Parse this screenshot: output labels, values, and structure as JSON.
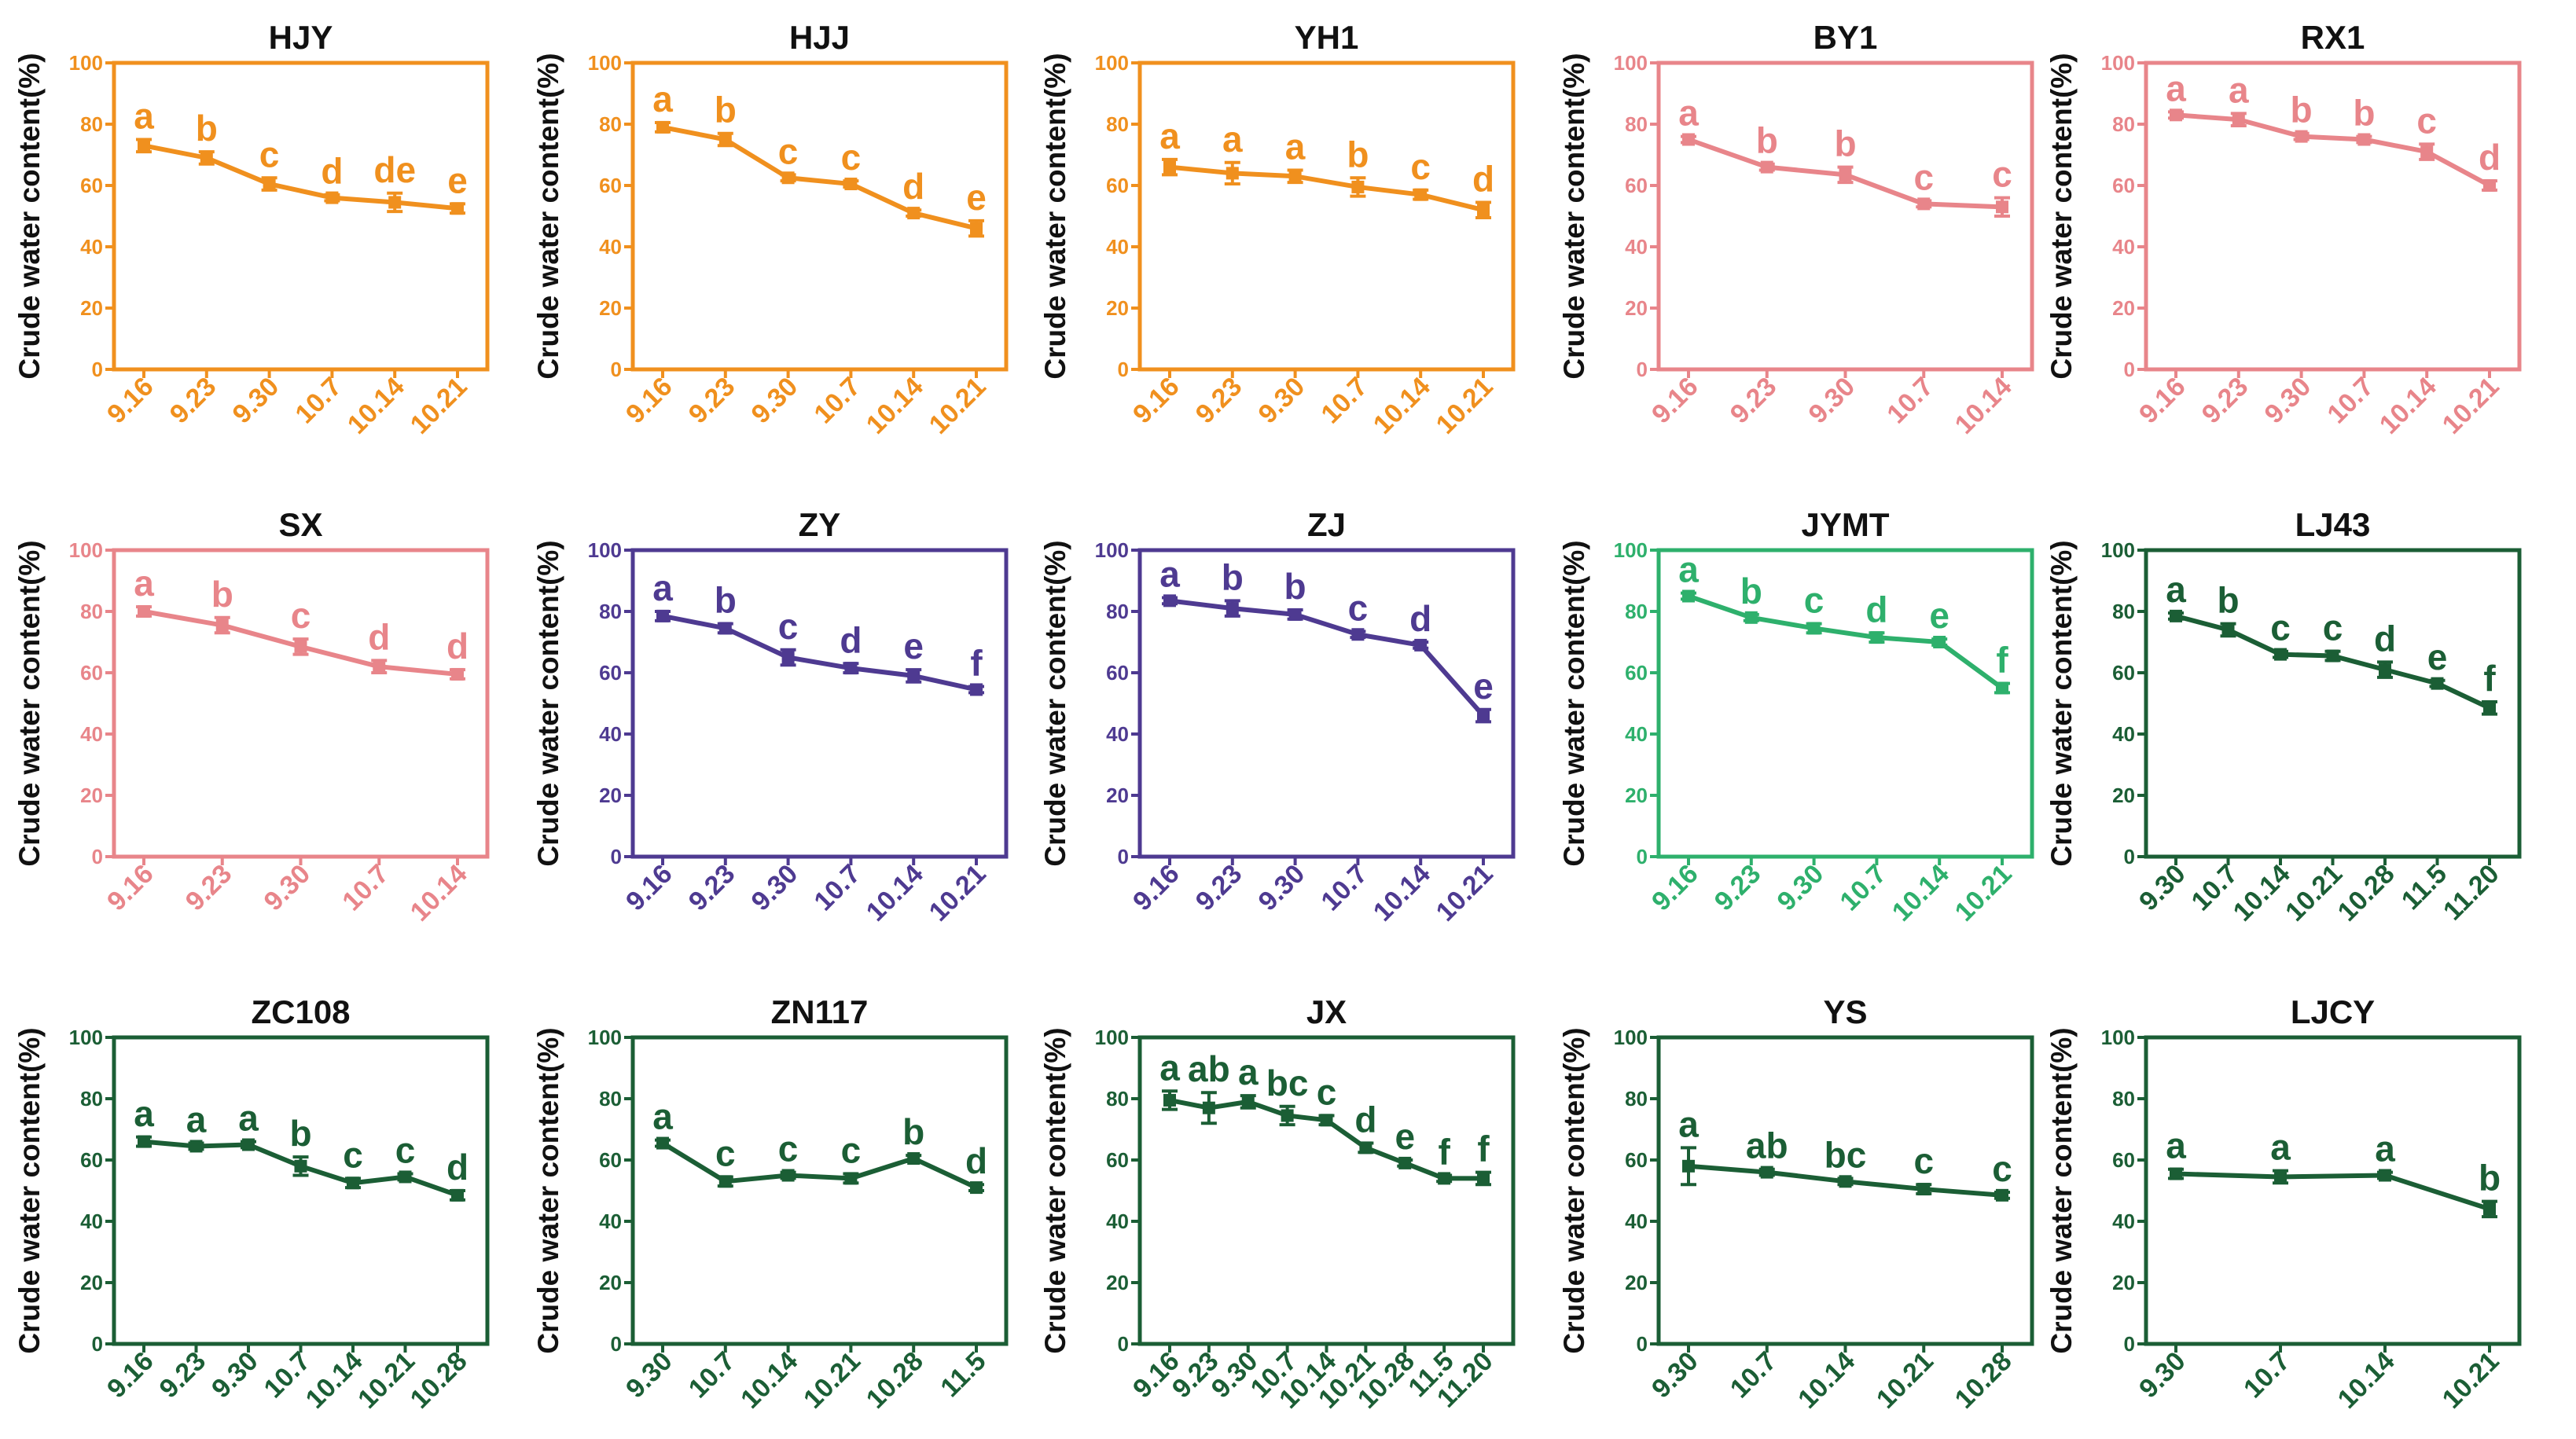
{
  "figure": {
    "ylabel": "Crude water content(%)",
    "ylim": [
      0,
      100
    ],
    "yticks": [
      0,
      20,
      40,
      60,
      80,
      100
    ]
  },
  "chart_data": [
    {
      "type": "line",
      "title": "HJY",
      "color": "#F0901E",
      "ylabel": "Crude water content(%)",
      "ylim": [
        0,
        100
      ],
      "categories": [
        "9.16",
        "9.23",
        "9.30",
        "10.7",
        "10.14",
        "10.21"
      ],
      "values": [
        73,
        69,
        60.5,
        56,
        54.5,
        52.5
      ],
      "errors": [
        2,
        2,
        2,
        1,
        3,
        1.5
      ],
      "letters": [
        "a",
        "b",
        "c",
        "d",
        "de",
        "e"
      ]
    },
    {
      "type": "line",
      "title": "HJJ",
      "color": "#F0901E",
      "ylabel": "Crude water content(%)",
      "ylim": [
        0,
        100
      ],
      "categories": [
        "9.16",
        "9.23",
        "9.30",
        "10.7",
        "10.14",
        "10.21"
      ],
      "values": [
        79,
        75,
        62.5,
        60.5,
        51,
        46
      ],
      "errors": [
        1.5,
        2,
        1,
        1,
        1,
        2.5
      ],
      "letters": [
        "a",
        "b",
        "c",
        "c",
        "d",
        "e"
      ]
    },
    {
      "type": "line",
      "title": "YH1",
      "color": "#F0901E",
      "ylabel": "Crude water content(%)",
      "ylim": [
        0,
        100
      ],
      "categories": [
        "9.16",
        "9.23",
        "9.30",
        "10.7",
        "10.14",
        "10.21"
      ],
      "values": [
        66,
        64,
        63,
        59.5,
        57,
        52
      ],
      "errors": [
        2.5,
        3.5,
        2,
        3,
        1.5,
        2.5
      ],
      "letters": [
        "a",
        "a",
        "a",
        "b",
        "c",
        "d"
      ]
    },
    {
      "type": "line",
      "title": "BY1",
      "color": "#E8858A",
      "ylabel": "Crude water content(%)",
      "ylim": [
        0,
        100
      ],
      "categories": [
        "9.16",
        "9.23",
        "9.30",
        "10.7",
        "10.14"
      ],
      "values": [
        75,
        66,
        63.5,
        54,
        53
      ],
      "errors": [
        1,
        1,
        2.5,
        1,
        3
      ],
      "letters": [
        "a",
        "b",
        "b",
        "c",
        "c"
      ]
    },
    {
      "type": "line",
      "title": "RX1",
      "color": "#E8858A",
      "ylabel": "Crude water content(%)",
      "ylim": [
        0,
        100
      ],
      "categories": [
        "9.16",
        "9.23",
        "9.30",
        "10.7",
        "10.14",
        "10.21"
      ],
      "values": [
        83,
        81.5,
        76,
        75,
        71,
        60
      ],
      "errors": [
        1,
        2,
        1,
        1,
        2.5,
        1.5
      ],
      "letters": [
        "a",
        "a",
        "b",
        "b",
        "c",
        "d"
      ]
    },
    {
      "type": "line",
      "title": "SX",
      "color": "#E8858A",
      "ylabel": "Crude water content(%)",
      "ylim": [
        0,
        100
      ],
      "categories": [
        "9.16",
        "9.23",
        "9.30",
        "10.7",
        "10.14"
      ],
      "values": [
        80,
        75.5,
        68.5,
        62,
        59.5
      ],
      "errors": [
        1.5,
        2.5,
        2.5,
        2,
        1.5
      ],
      "letters": [
        "a",
        "b",
        "c",
        "d",
        "d"
      ]
    },
    {
      "type": "line",
      "title": "ZY",
      "color": "#4E3A91",
      "ylabel": "Crude water content(%)",
      "ylim": [
        0,
        100
      ],
      "categories": [
        "9.16",
        "9.23",
        "9.30",
        "10.7",
        "10.14",
        "10.21"
      ],
      "values": [
        78.5,
        74.5,
        65,
        61.5,
        59,
        54.5
      ],
      "errors": [
        1.5,
        1.5,
        2.5,
        1.5,
        2,
        1
      ],
      "letters": [
        "a",
        "b",
        "c",
        "d",
        "e",
        "f"
      ]
    },
    {
      "type": "line",
      "title": "ZJ",
      "color": "#4E3A91",
      "ylabel": "Crude water content(%)",
      "ylim": [
        0,
        100
      ],
      "categories": [
        "9.16",
        "9.23",
        "9.30",
        "10.7",
        "10.14",
        "10.21"
      ],
      "values": [
        83.5,
        81,
        79,
        72.5,
        69,
        46
      ],
      "errors": [
        1,
        2.5,
        1.5,
        1,
        1,
        2
      ],
      "letters": [
        "a",
        "b",
        "b",
        "c",
        "d",
        "e"
      ]
    },
    {
      "type": "line",
      "title": "JYMT",
      "color": "#2EB06C",
      "ylabel": "Crude water content(%)",
      "ylim": [
        0,
        100
      ],
      "categories": [
        "9.16",
        "9.23",
        "9.30",
        "10.7",
        "10.14",
        "10.21"
      ],
      "values": [
        85,
        78,
        74.5,
        71.5,
        70,
        55
      ],
      "errors": [
        1,
        1,
        1.5,
        1.5,
        1,
        1.5
      ],
      "letters": [
        "a",
        "b",
        "c",
        "d",
        "e",
        "f"
      ]
    },
    {
      "type": "line",
      "title": "LJ43",
      "color": "#1B5E35",
      "ylabel": "Crude water content(%)",
      "ylim": [
        0,
        100
      ],
      "categories": [
        "9.30",
        "10.7",
        "10.14",
        "10.21",
        "10.28",
        "11.5",
        "11.20"
      ],
      "values": [
        78.5,
        74,
        66,
        65.5,
        61,
        56.5,
        48.5
      ],
      "errors": [
        1,
        2,
        1,
        1.5,
        2.5,
        1,
        2
      ],
      "letters": [
        "a",
        "b",
        "c",
        "c",
        "d",
        "e",
        "f"
      ]
    },
    {
      "type": "line",
      "title": "ZC108",
      "color": "#1B5E35",
      "ylabel": "Crude water content(%)",
      "ylim": [
        0,
        100
      ],
      "categories": [
        "9.16",
        "9.23",
        "9.30",
        "10.7",
        "10.14",
        "10.21",
        "10.28"
      ],
      "values": [
        66,
        64.5,
        65,
        58,
        52.5,
        54.5,
        48.5
      ],
      "errors": [
        1.5,
        1,
        1,
        3,
        1.5,
        1,
        1.5
      ],
      "letters": [
        "a",
        "a",
        "a",
        "b",
        "c",
        "c",
        "d"
      ]
    },
    {
      "type": "line",
      "title": "ZN117",
      "color": "#1B5E35",
      "ylabel": "Crude water content(%)",
      "ylim": [
        0,
        100
      ],
      "categories": [
        "9.30",
        "10.7",
        "10.14",
        "10.21",
        "10.28",
        "11.5"
      ],
      "values": [
        65.5,
        53,
        55,
        54,
        60.5,
        51
      ],
      "errors": [
        1,
        1.5,
        1,
        1.5,
        1,
        1
      ],
      "letters": [
        "a",
        "c",
        "c",
        "c",
        "b",
        "d"
      ]
    },
    {
      "type": "line",
      "title": "JX",
      "color": "#1B5E35",
      "ylabel": "Crude water content(%)",
      "ylim": [
        0,
        100
      ],
      "categories": [
        "9.16",
        "9.23",
        "9.30",
        "10.7",
        "10.14",
        "10.21",
        "10.28",
        "11.5",
        "11.20"
      ],
      "values": [
        79.5,
        77,
        79,
        74.5,
        73,
        64,
        59,
        54,
        54
      ],
      "errors": [
        3,
        5,
        2,
        3,
        1.5,
        1.5,
        1,
        1,
        2
      ],
      "letters": [
        "a",
        "ab",
        "a",
        "bc",
        "c",
        "d",
        "e",
        "f",
        "f"
      ]
    },
    {
      "type": "line",
      "title": "YS",
      "color": "#1B5E35",
      "ylabel": "Crude water content(%)",
      "ylim": [
        0,
        100
      ],
      "categories": [
        "9.30",
        "10.7",
        "10.14",
        "10.21",
        "10.28"
      ],
      "values": [
        58,
        56,
        53,
        50.5,
        48.5
      ],
      "errors": [
        6,
        1,
        1,
        1.5,
        1
      ],
      "letters": [
        "a",
        "ab",
        "bc",
        "c",
        "c"
      ]
    },
    {
      "type": "line",
      "title": "LJCY",
      "color": "#1B5E35",
      "ylabel": "Crude water content(%)",
      "ylim": [
        0,
        100
      ],
      "categories": [
        "9.30",
        "10.7",
        "10.14",
        "10.21"
      ],
      "values": [
        55.5,
        54.5,
        55,
        44
      ],
      "errors": [
        1.5,
        2,
        1,
        2.5
      ],
      "letters": [
        "a",
        "a",
        "a",
        "b"
      ]
    }
  ]
}
